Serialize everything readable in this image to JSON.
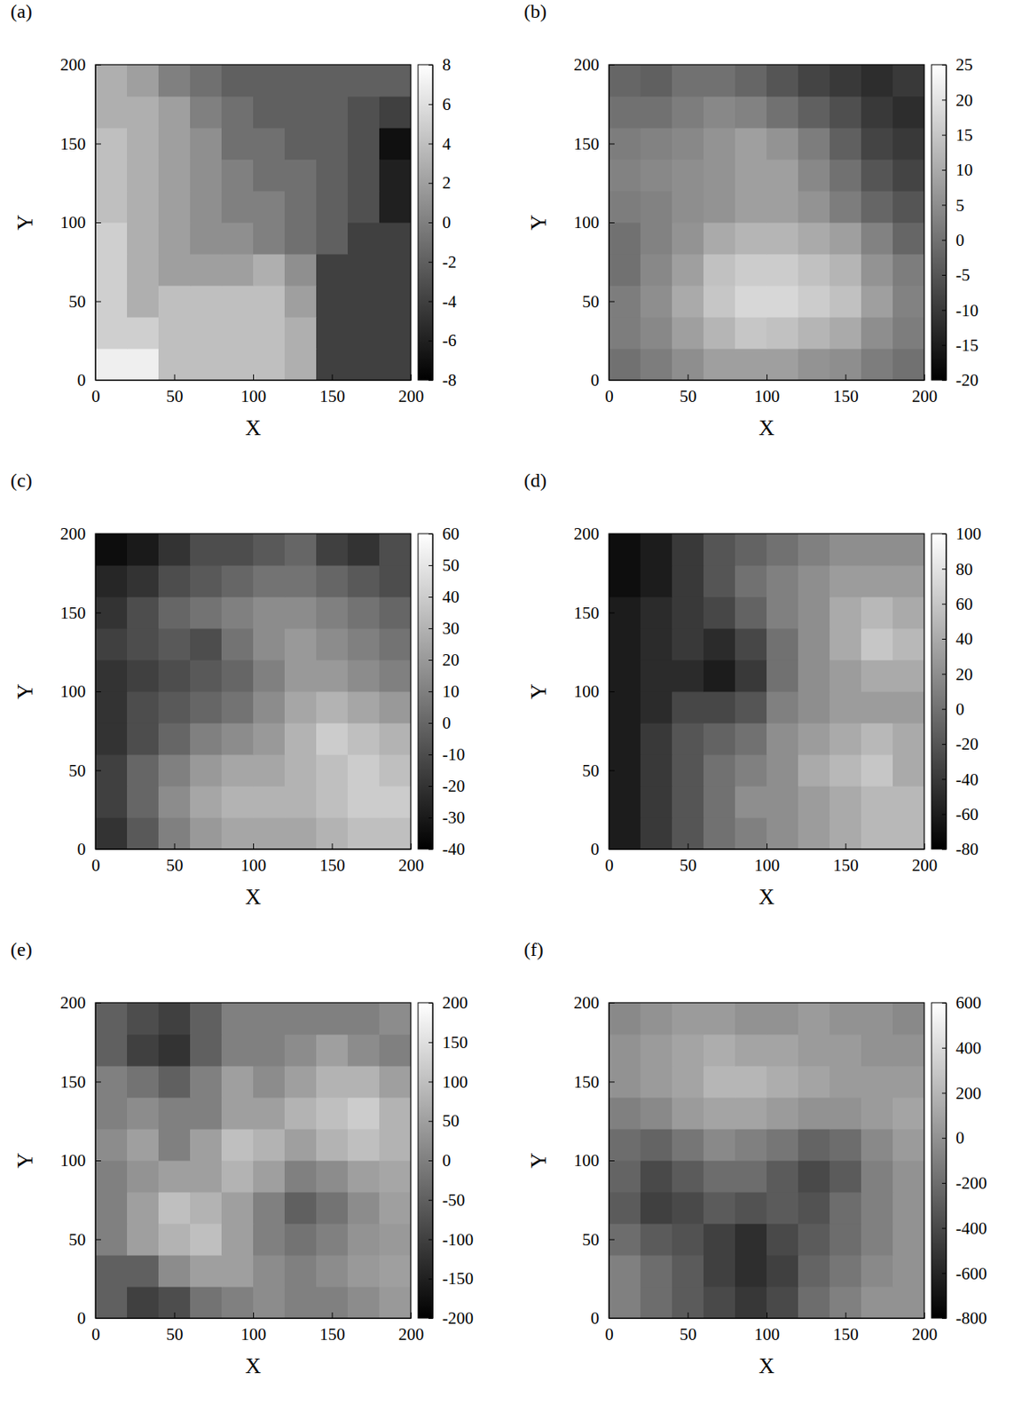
{
  "chart_data": [
    {
      "type": "heatmap",
      "title": "(a)",
      "xlabel": "X",
      "ylabel": "Y",
      "xlim": [
        0,
        200
      ],
      "ylim": [
        0,
        200
      ],
      "xticks": [
        0,
        50,
        100,
        150,
        200
      ],
      "yticks": [
        0,
        50,
        100,
        150,
        200
      ],
      "x": [
        10,
        30,
        50,
        70,
        90,
        110,
        130,
        150,
        170,
        190
      ],
      "y": [
        10,
        30,
        50,
        70,
        90,
        110,
        130,
        150,
        170,
        190
      ],
      "zlim": [
        -8,
        8
      ],
      "zticks": [
        -8,
        -6,
        -4,
        -2,
        0,
        2,
        4,
        6,
        8
      ],
      "cells": [
        [
          7,
          7,
          4,
          4,
          4,
          4,
          3,
          -4,
          -4,
          -4
        ],
        [
          5,
          5,
          4,
          4,
          4,
          4,
          3,
          -4,
          -4,
          -4
        ],
        [
          5,
          3,
          4,
          4,
          4,
          4,
          2,
          -4,
          -4,
          -4
        ],
        [
          5,
          3,
          2,
          2,
          2,
          3,
          1,
          -4,
          -4,
          -4
        ],
        [
          5,
          3,
          2,
          1,
          1,
          0,
          -1,
          -2,
          -4,
          -4
        ],
        [
          4,
          3,
          2,
          1,
          0,
          0,
          -1,
          -2,
          -3,
          -6
        ],
        [
          4,
          3,
          2,
          1,
          0,
          -1,
          -1,
          -2,
          -3,
          -6
        ],
        [
          4,
          3,
          2,
          1,
          -1,
          -1,
          -2,
          -2,
          -3,
          -7
        ],
        [
          3,
          3,
          2,
          0,
          -1,
          -2,
          -2,
          -2,
          -3,
          -4
        ],
        [
          3,
          2,
          0,
          -1,
          -2,
          -2,
          -2,
          -2,
          -2,
          -2
        ]
      ]
    },
    {
      "type": "heatmap",
      "title": "(b)",
      "xlabel": "X",
      "ylabel": "Y",
      "xlim": [
        0,
        200
      ],
      "ylim": [
        0,
        200
      ],
      "xticks": [
        0,
        50,
        100,
        150,
        200
      ],
      "yticks": [
        0,
        50,
        100,
        150,
        200
      ],
      "x": [
        10,
        30,
        50,
        70,
        90,
        110,
        130,
        150,
        170,
        190
      ],
      "y": [
        10,
        30,
        50,
        70,
        90,
        110,
        130,
        150,
        170,
        190
      ],
      "zlim": [
        -20,
        25
      ],
      "zticks": [
        -20,
        -15,
        -10,
        -5,
        0,
        5,
        10,
        15,
        20,
        25
      ],
      "cells": [
        [
          0,
          2,
          5,
          8,
          8,
          8,
          6,
          5,
          2,
          0
        ],
        [
          2,
          4,
          8,
          12,
          15,
          14,
          12,
          10,
          5,
          2
        ],
        [
          2,
          5,
          10,
          15,
          18,
          18,
          16,
          14,
          8,
          3
        ],
        [
          0,
          4,
          8,
          14,
          16,
          16,
          14,
          12,
          6,
          2
        ],
        [
          0,
          3,
          6,
          10,
          12,
          12,
          10,
          8,
          3,
          -2
        ],
        [
          2,
          3,
          5,
          6,
          8,
          8,
          6,
          2,
          -2,
          -5
        ],
        [
          3,
          4,
          5,
          6,
          8,
          8,
          4,
          0,
          -5,
          -8
        ],
        [
          2,
          3,
          4,
          6,
          8,
          6,
          2,
          -3,
          -8,
          -10
        ],
        [
          0,
          0,
          2,
          4,
          3,
          0,
          -3,
          -6,
          -10,
          -12
        ],
        [
          -2,
          -3,
          0,
          0,
          -2,
          -5,
          -8,
          -10,
          -12,
          -10
        ]
      ]
    },
    {
      "type": "heatmap",
      "title": "(c)",
      "xlabel": "X",
      "ylabel": "Y",
      "xlim": [
        0,
        200
      ],
      "ylim": [
        0,
        200
      ],
      "xticks": [
        0,
        50,
        100,
        150,
        200
      ],
      "yticks": [
        0,
        50,
        100,
        150,
        200
      ],
      "x": [
        10,
        30,
        50,
        70,
        90,
        110,
        130,
        150,
        170,
        190
      ],
      "y": [
        10,
        30,
        50,
        70,
        90,
        110,
        130,
        150,
        170,
        190
      ],
      "zlim": [
        -40,
        60
      ],
      "zticks": [
        -40,
        -30,
        -20,
        -10,
        0,
        10,
        20,
        30,
        40,
        50,
        60
      ],
      "cells": [
        [
          -20,
          -5,
          10,
          20,
          25,
          25,
          25,
          30,
          35,
          35
        ],
        [
          -15,
          0,
          15,
          25,
          30,
          30,
          30,
          35,
          40,
          40
        ],
        [
          -15,
          0,
          10,
          20,
          25,
          25,
          30,
          35,
          40,
          35
        ],
        [
          -20,
          -10,
          0,
          10,
          15,
          20,
          30,
          40,
          35,
          30
        ],
        [
          -20,
          -10,
          -5,
          0,
          5,
          15,
          25,
          30,
          25,
          20
        ],
        [
          -20,
          -15,
          -10,
          -5,
          0,
          10,
          20,
          20,
          15,
          10
        ],
        [
          -15,
          -10,
          -5,
          -10,
          5,
          15,
          20,
          15,
          10,
          5
        ],
        [
          -20,
          -10,
          0,
          5,
          10,
          15,
          15,
          10,
          5,
          0
        ],
        [
          -25,
          -20,
          -10,
          -5,
          0,
          5,
          5,
          0,
          -5,
          -10
        ],
        [
          -35,
          -30,
          -20,
          -10,
          -10,
          -5,
          0,
          -15,
          -20,
          -10
        ]
      ]
    },
    {
      "type": "heatmap",
      "title": "(d)",
      "xlabel": "X",
      "ylabel": "Y",
      "xlim": [
        0,
        200
      ],
      "ylim": [
        0,
        200
      ],
      "xticks": [
        0,
        50,
        100,
        150,
        200
      ],
      "yticks": [
        0,
        50,
        100,
        150,
        200
      ],
      "x": [
        10,
        30,
        50,
        70,
        90,
        110,
        130,
        150,
        170,
        190
      ],
      "y": [
        10,
        30,
        50,
        70,
        90,
        110,
        130,
        150,
        170,
        190
      ],
      "zlim": [
        -80,
        100
      ],
      "zticks": [
        -80,
        -60,
        -40,
        -20,
        0,
        20,
        40,
        60,
        80,
        100
      ],
      "cells": [
        [
          -60,
          -40,
          -20,
          0,
          10,
          20,
          30,
          40,
          50,
          50
        ],
        [
          -60,
          -40,
          -20,
          0,
          20,
          20,
          30,
          40,
          50,
          50
        ],
        [
          -60,
          -40,
          -20,
          0,
          10,
          20,
          40,
          50,
          60,
          40
        ],
        [
          -60,
          -40,
          -20,
          -10,
          0,
          20,
          30,
          40,
          50,
          40
        ],
        [
          -60,
          -50,
          -30,
          -30,
          -20,
          10,
          20,
          30,
          30,
          30
        ],
        [
          -60,
          -50,
          -50,
          -60,
          -40,
          0,
          20,
          30,
          40,
          40
        ],
        [
          -60,
          -50,
          -40,
          -50,
          -30,
          0,
          20,
          40,
          60,
          50
        ],
        [
          -60,
          -50,
          -40,
          -30,
          -10,
          10,
          20,
          40,
          50,
          40
        ],
        [
          -70,
          -60,
          -40,
          -20,
          0,
          10,
          20,
          30,
          30,
          30
        ],
        [
          -70,
          -60,
          -40,
          -20,
          -10,
          0,
          10,
          20,
          20,
          20
        ]
      ]
    },
    {
      "type": "heatmap",
      "title": "(e)",
      "xlabel": "X",
      "ylabel": "Y",
      "xlim": [
        0,
        200
      ],
      "ylim": [
        0,
        200
      ],
      "xticks": [
        0,
        50,
        100,
        150,
        200
      ],
      "yticks": [
        0,
        50,
        100,
        150,
        200
      ],
      "x": [
        10,
        30,
        50,
        70,
        90,
        110,
        130,
        150,
        170,
        190
      ],
      "y": [
        10,
        30,
        50,
        70,
        90,
        110,
        130,
        150,
        170,
        190
      ],
      "zlim": [
        -200,
        200
      ],
      "zticks": [
        -200,
        -150,
        -100,
        -50,
        0,
        50,
        100,
        150,
        200
      ],
      "cells": [
        [
          -50,
          -100,
          -80,
          -20,
          0,
          20,
          0,
          0,
          20,
          40
        ],
        [
          -50,
          -50,
          20,
          50,
          50,
          20,
          0,
          20,
          40,
          50
        ],
        [
          0,
          50,
          80,
          100,
          50,
          0,
          -20,
          0,
          30,
          40
        ],
        [
          0,
          50,
          100,
          80,
          50,
          0,
          -50,
          -20,
          20,
          50
        ],
        [
          0,
          30,
          50,
          50,
          80,
          50,
          0,
          20,
          50,
          60
        ],
        [
          20,
          50,
          0,
          50,
          100,
          80,
          50,
          80,
          100,
          80
        ],
        [
          0,
          20,
          0,
          0,
          50,
          50,
          80,
          100,
          120,
          80
        ],
        [
          0,
          -20,
          -50,
          0,
          50,
          20,
          50,
          80,
          80,
          50
        ],
        [
          -50,
          -100,
          -120,
          -50,
          0,
          0,
          20,
          50,
          20,
          0
        ],
        [
          -50,
          -80,
          -100,
          -50,
          0,
          0,
          0,
          0,
          0,
          20
        ]
      ]
    },
    {
      "type": "heatmap",
      "title": "(f)",
      "xlabel": "X",
      "ylabel": "Y",
      "xlim": [
        0,
        200
      ],
      "ylim": [
        0,
        200
      ],
      "xticks": [
        0,
        50,
        100,
        150,
        200
      ],
      "yticks": [
        0,
        50,
        100,
        150,
        200
      ],
      "x": [
        10,
        30,
        50,
        70,
        90,
        110,
        130,
        150,
        170,
        190
      ],
      "y": [
        10,
        30,
        50,
        70,
        90,
        110,
        130,
        150,
        170,
        190
      ],
      "zlim": [
        -800,
        600
      ],
      "zticks": [
        -800,
        -600,
        -400,
        -200,
        0,
        200,
        400,
        600
      ],
      "cells": [
        [
          -100,
          -200,
          -300,
          -400,
          -500,
          -400,
          -200,
          -100,
          0,
          0
        ],
        [
          -100,
          -200,
          -300,
          -450,
          -550,
          -450,
          -250,
          -150,
          -50,
          0
        ],
        [
          -200,
          -300,
          -350,
          -450,
          -550,
          -400,
          -300,
          -200,
          -100,
          0
        ],
        [
          -300,
          -450,
          -400,
          -300,
          -350,
          -300,
          -350,
          -200,
          -100,
          0
        ],
        [
          -250,
          -400,
          -300,
          -200,
          -200,
          -300,
          -400,
          -300,
          -100,
          0
        ],
        [
          -200,
          -250,
          -150,
          -50,
          -100,
          -150,
          -250,
          -200,
          -50,
          50
        ],
        [
          -100,
          -50,
          50,
          100,
          100,
          50,
          0,
          0,
          50,
          100
        ],
        [
          0,
          50,
          100,
          200,
          200,
          150,
          100,
          50,
          50,
          50
        ],
        [
          0,
          50,
          100,
          150,
          100,
          100,
          50,
          50,
          0,
          0
        ],
        [
          -50,
          0,
          50,
          50,
          0,
          0,
          50,
          0,
          0,
          -50
        ]
      ]
    }
  ]
}
